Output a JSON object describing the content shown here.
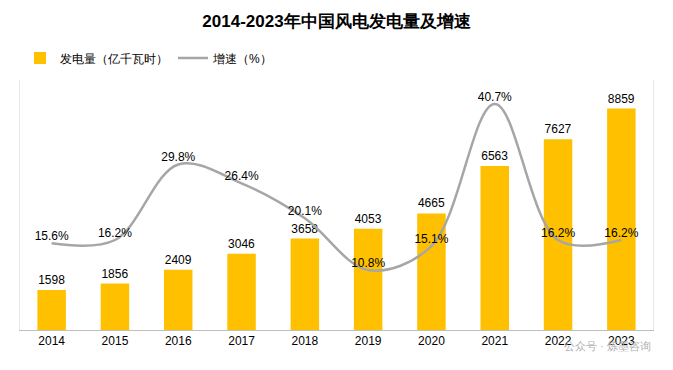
{
  "chart_data": {
    "type": "bar",
    "title": "2014-2023年中国风电发电量及增速",
    "categories": [
      "2014",
      "2015",
      "2016",
      "2017",
      "2018",
      "2019",
      "2020",
      "2021",
      "2022",
      "2023"
    ],
    "series": [
      {
        "name": "发电量（亿千瓦时）",
        "type": "bar",
        "color": "#FFC000",
        "values": [
          1598,
          1856,
          2409,
          3046,
          3658,
          4053,
          4665,
          6563,
          7627,
          8859
        ]
      },
      {
        "name": "增速（%）",
        "type": "line",
        "axis": "y2",
        "color": "#A6A6A6",
        "marker": "none",
        "values": [
          15.6,
          16.2,
          29.8,
          26.4,
          20.1,
          10.8,
          15.1,
          40.7,
          16.2,
          16.2
        ],
        "value_labels": [
          "15.6%",
          "16.2%",
          "29.8%",
          "26.4%",
          "20.1%",
          "10.8%",
          "15.1%",
          "40.7%",
          "16.2%",
          "16.2%"
        ]
      }
    ],
    "ylim": [
      0,
      10000
    ],
    "y2lim": [
      0,
      45
    ],
    "data_labels": true,
    "tick_labels": "x",
    "grid": false,
    "legend": "top-left",
    "annotations": [
      {
        "text": "公众号 · 炼墨咨询"
      }
    ]
  }
}
